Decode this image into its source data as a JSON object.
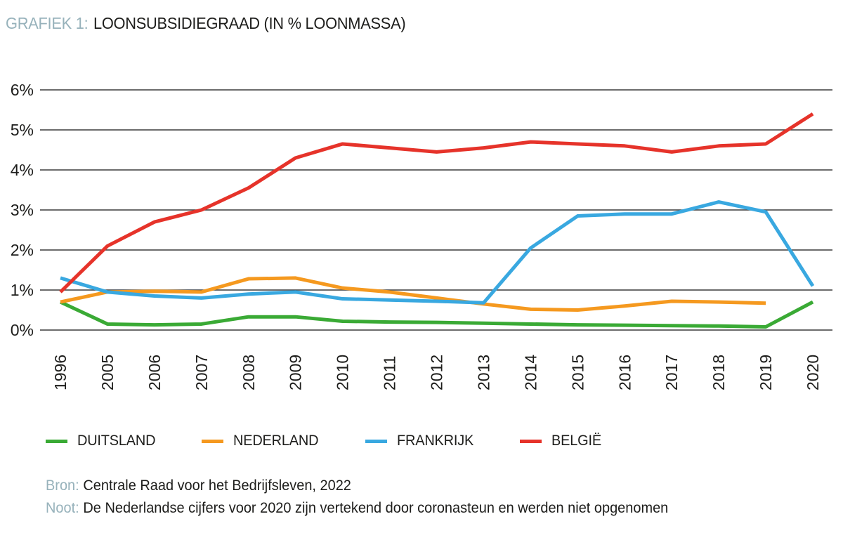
{
  "title": {
    "prefix": "GRAFIEK 1:",
    "text": "LOONSUBSIDIEGRAAD (IN % LOONMASSA)"
  },
  "colors": {
    "accent_muted": "#97b2bb",
    "text_dark": "#1d1d1b",
    "gridline": "#3c3c3b"
  },
  "chart_data": {
    "type": "line",
    "title": "LOONSUBSIDIEGRAAD (IN % LOONMASSA)",
    "categories": [
      "1996",
      "2005",
      "2006",
      "2007",
      "2008",
      "2009",
      "2010",
      "2011",
      "2012",
      "2013",
      "2014",
      "2015",
      "2016",
      "2017",
      "2018",
      "2019",
      "2020"
    ],
    "yticks": [
      "0%",
      "1%",
      "2%",
      "3%",
      "4%",
      "5%",
      "6%"
    ],
    "ylim": [
      0,
      6
    ],
    "grid": true,
    "legend_position": "bottom",
    "series": [
      {
        "name": "DUITSLAND",
        "color": "#3aaa35",
        "values": [
          0.7,
          0.15,
          0.13,
          0.15,
          0.33,
          0.33,
          0.22,
          0.2,
          0.19,
          0.17,
          0.15,
          0.13,
          0.12,
          0.11,
          0.1,
          0.08,
          0.7
        ]
      },
      {
        "name": "NEDERLAND",
        "color": "#f5991f",
        "values": [
          0.7,
          0.95,
          0.97,
          0.95,
          1.28,
          1.3,
          1.05,
          0.95,
          0.8,
          0.65,
          0.52,
          0.5,
          0.6,
          0.72,
          0.7,
          0.67,
          null
        ]
      },
      {
        "name": "FRANKRIJK",
        "color": "#39a8e0",
        "values": [
          1.3,
          0.95,
          0.85,
          0.8,
          0.9,
          0.95,
          0.78,
          0.75,
          0.72,
          0.68,
          2.05,
          2.85,
          2.9,
          2.9,
          3.2,
          2.95,
          1.1
        ]
      },
      {
        "name": "BELGIË",
        "color": "#e6332a",
        "values": [
          0.95,
          2.1,
          2.7,
          3.0,
          3.55,
          4.3,
          4.65,
          4.55,
          4.45,
          4.55,
          4.7,
          4.65,
          4.6,
          4.45,
          4.6,
          4.65,
          5.4
        ]
      }
    ]
  },
  "footer": {
    "bron_label": "Bron:",
    "bron_text": "Centrale Raad voor het Bedrijfsleven, 2022",
    "noot_label": "Noot:",
    "noot_text": "De Nederlandse cijfers voor 2020 zijn vertekend door coronasteun en werden niet opgenomen"
  }
}
